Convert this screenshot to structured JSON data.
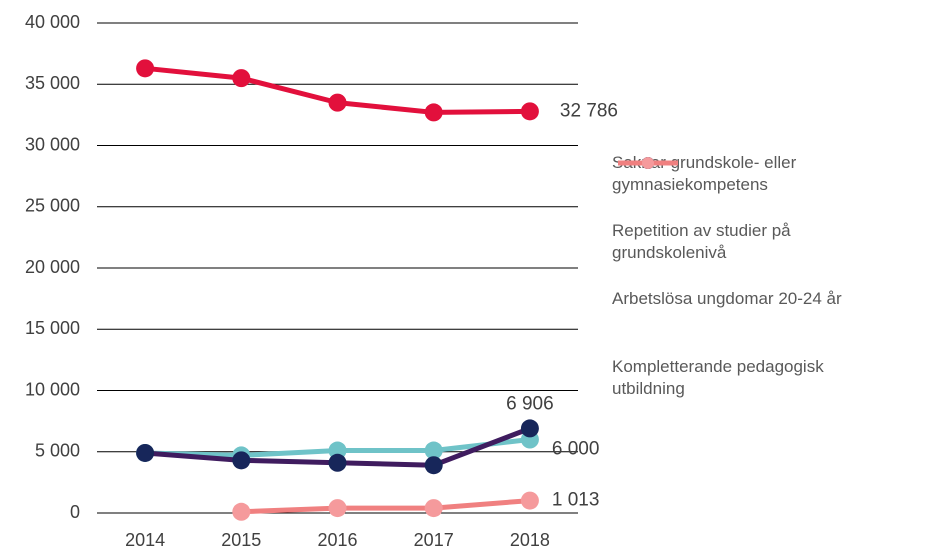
{
  "chart_data": {
    "type": "line",
    "categories": [
      "2014",
      "2015",
      "2016",
      "2017",
      "2018"
    ],
    "series": [
      {
        "name": "Saknar grundskole- eller gymnasiekompetens",
        "color": "#e2103c",
        "values": [
          36300,
          35500,
          33500,
          32700,
          32786
        ],
        "value_labels": [
          null,
          null,
          null,
          null,
          "32 786"
        ]
      },
      {
        "name": "Repetition av studier på grundskolenivå",
        "color": "#6fc3c8",
        "values": [
          4900,
          4700,
          5100,
          5100,
          6000
        ],
        "value_labels": [
          null,
          null,
          null,
          null,
          "6 000"
        ]
      },
      {
        "name": "Arbetslösa ungdomar 20-24 år",
        "color": "#3f1c5f",
        "marker_color": "#17265a",
        "values": [
          4900,
          4300,
          4100,
          3900,
          6906
        ],
        "value_labels": [
          null,
          null,
          null,
          null,
          "6 906"
        ]
      },
      {
        "name": "Kompletterande pedagogisk utbildning",
        "color": "#f08080",
        "marker_color": "#f59a9c",
        "values": [
          null,
          100,
          400,
          400,
          1013
        ],
        "value_labels": [
          null,
          null,
          null,
          null,
          "1 013"
        ]
      }
    ],
    "ylim": [
      0,
      40000
    ],
    "yticks": [
      0,
      {
        "value": 5000,
        "label": "5 000"
      },
      {
        "value": 10000,
        "label": "10 000"
      },
      {
        "value": 15000,
        "label": "15 000"
      },
      {
        "value": 20000,
        "label": "20 000"
      },
      {
        "value": 25000,
        "label": "25 000"
      },
      {
        "value": 30000,
        "label": "30 000"
      },
      {
        "value": 35000,
        "label": "35 000"
      },
      {
        "value": 40000,
        "label": "40 000"
      }
    ],
    "grid": true,
    "legend": "right"
  }
}
